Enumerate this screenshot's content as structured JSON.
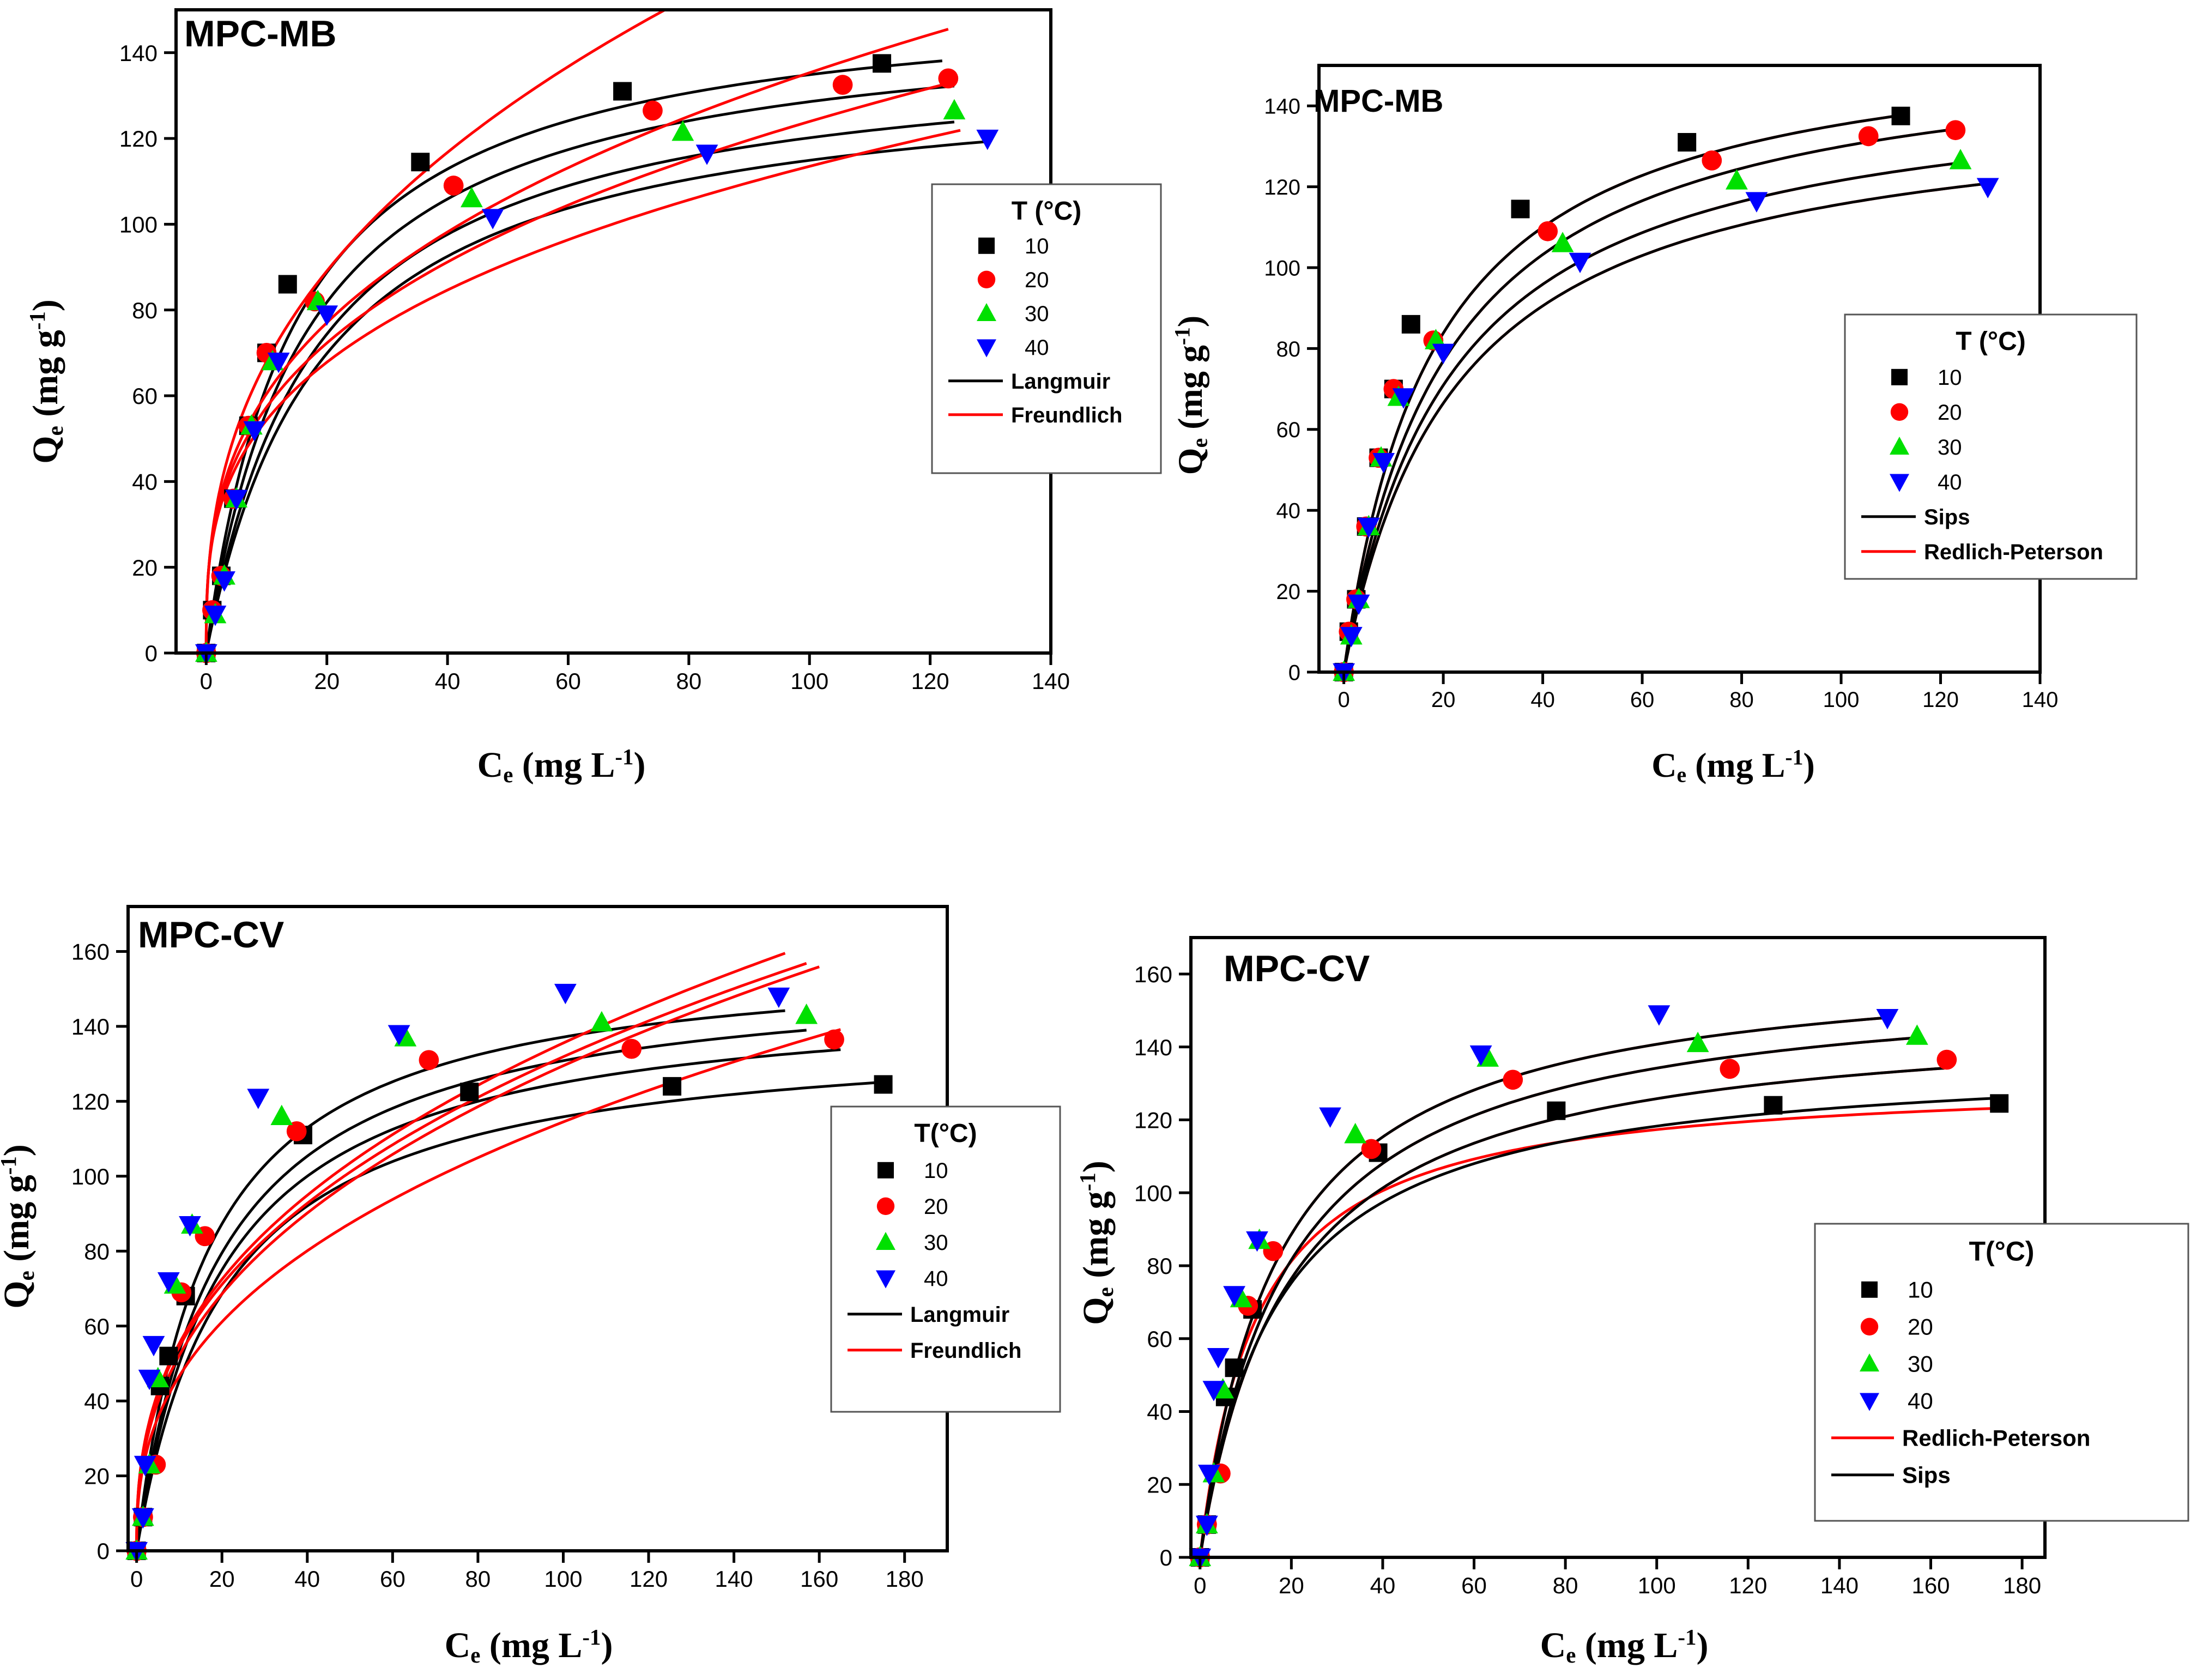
{
  "colors": {
    "t10": "#000000",
    "t20": "#ff0000",
    "t30": "#00e000",
    "t40": "#0000ff",
    "langmuir": "#000000",
    "freundlich": "#ff0000",
    "sips": "#000000",
    "rp": "#ff0000"
  },
  "chart_data": [
    {
      "type": "scatter",
      "title": "MPC-MB",
      "xlabel": "Ce (mg L-1)",
      "ylabel": "Qe (mg g-1)",
      "xlim": [
        -5,
        140
      ],
      "ylim": [
        0,
        150
      ],
      "xticks": [
        0,
        20,
        40,
        60,
        80,
        100,
        120,
        140
      ],
      "yticks": [
        0,
        20,
        40,
        60,
        80,
        100,
        120,
        140
      ],
      "legend": {
        "title": "T (°C)",
        "series": [
          "10",
          "20",
          "30",
          "40"
        ],
        "fits": [
          "Langmuir",
          "Freundlich"
        ],
        "position": "right-middle"
      },
      "series": [
        {
          "name": "10",
          "marker": "square",
          "color": "#000000",
          "x": [
            0,
            1,
            2.5,
            4.5,
            7,
            10,
            13.5,
            35.5,
            69,
            112
          ],
          "y": [
            0,
            10,
            18,
            36,
            53,
            70,
            86,
            114.5,
            131,
            137.5
          ]
        },
        {
          "name": "20",
          "marker": "circle",
          "color": "#ff0000",
          "x": [
            0,
            1,
            2.5,
            4.5,
            7,
            10,
            18,
            41,
            74,
            105.5,
            123
          ],
          "y": [
            0,
            10,
            18,
            36,
            53,
            70,
            82,
            109,
            126.5,
            132.5,
            134
          ]
        },
        {
          "name": "30",
          "marker": "triangle-up",
          "color": "#00e000",
          "x": [
            0,
            1.5,
            3,
            5,
            7.5,
            11,
            18.5,
            44,
            79,
            124
          ],
          "y": [
            0,
            9,
            18,
            36,
            53,
            68,
            82,
            106,
            121.5,
            126.5
          ]
        },
        {
          "name": "40",
          "marker": "triangle-down",
          "color": "#0000ff",
          "x": [
            0,
            1.5,
            3,
            5,
            8,
            12,
            20,
            47.5,
            83,
            129.5
          ],
          "y": [
            0,
            9,
            17,
            36,
            52,
            68,
            79,
            101.5,
            116.5,
            120
          ]
        }
      ],
      "fits": [
        {
          "model": "Langmuir",
          "color": "#000000",
          "qm": 155,
          "K": 0.067,
          "xmax": 122
        },
        {
          "model": "Langmuir",
          "color": "#000000",
          "qm": 150,
          "K": 0.06,
          "xmax": 124
        },
        {
          "model": "Langmuir",
          "color": "#000000",
          "qm": 142,
          "K": 0.055,
          "xmax": 124
        },
        {
          "model": "Langmuir",
          "color": "#000000",
          "qm": 137,
          "K": 0.052,
          "xmax": 130
        },
        {
          "model": "Freundlich",
          "color": "#ff0000",
          "Kf": 27.7,
          "n": 0.39,
          "xmax": 120
        },
        {
          "model": "Freundlich",
          "color": "#ff0000",
          "Kf": 27.0,
          "n": 0.35,
          "xmax": 123
        },
        {
          "model": "Freundlich",
          "color": "#ff0000",
          "Kf": 26.5,
          "n": 0.335,
          "xmax": 123
        },
        {
          "model": "Freundlich",
          "color": "#ff0000",
          "Kf": 26.0,
          "n": 0.32,
          "xmax": 125
        }
      ]
    },
    {
      "type": "scatter",
      "title": "MPC-MB",
      "xlabel": "Ce (mg L-1)",
      "ylabel": "Qe (mg g-1)",
      "xlim": [
        -5,
        140
      ],
      "ylim": [
        0,
        150
      ],
      "xticks": [
        0,
        20,
        40,
        60,
        80,
        100,
        120,
        140
      ],
      "yticks": [
        0,
        20,
        40,
        60,
        80,
        100,
        120,
        140
      ],
      "legend": {
        "title": "T (°C)",
        "series": [
          "10",
          "20",
          "30",
          "40"
        ],
        "fits": [
          "Sips",
          "Redlich-Peterson"
        ],
        "position": "right-middle"
      },
      "series": [
        {
          "name": "10",
          "marker": "square",
          "color": "#000000",
          "x": [
            0,
            1,
            2.5,
            4.5,
            7,
            10,
            13.5,
            35.5,
            69,
            112
          ],
          "y": [
            0,
            10,
            18,
            36,
            53,
            70,
            86,
            114.5,
            131,
            137.5
          ]
        },
        {
          "name": "20",
          "marker": "circle",
          "color": "#ff0000",
          "x": [
            0,
            1,
            2.5,
            4.5,
            7,
            10,
            18,
            41,
            74,
            105.5,
            123
          ],
          "y": [
            0,
            10,
            18,
            36,
            53,
            70,
            82,
            109,
            126.5,
            132.5,
            134
          ]
        },
        {
          "name": "30",
          "marker": "triangle-up",
          "color": "#00e000",
          "x": [
            0,
            1.5,
            3,
            5,
            7.5,
            11,
            18.5,
            44,
            79,
            124
          ],
          "y": [
            0,
            9,
            18,
            36,
            53,
            68,
            82,
            106,
            121.5,
            126.5
          ]
        },
        {
          "name": "40",
          "marker": "triangle-down",
          "color": "#0000ff",
          "x": [
            0,
            1.5,
            3,
            5,
            8,
            12,
            20,
            47.5,
            83,
            129.5
          ],
          "y": [
            0,
            9,
            17,
            36,
            52,
            68,
            79,
            101.5,
            116.5,
            120
          ]
        }
      ],
      "fits": [
        {
          "model": "Redlich-Peterson",
          "color": "#ff0000",
          "qm": 160,
          "K": 0.055,
          "xmax": 113
        },
        {
          "model": "Redlich-Peterson",
          "color": "#ff0000",
          "qm": 157,
          "K": 0.048,
          "xmax": 123
        },
        {
          "model": "Redlich-Peterson",
          "color": "#ff0000",
          "qm": 148,
          "K": 0.046,
          "xmax": 124
        },
        {
          "model": "Redlich-Peterson",
          "color": "#ff0000",
          "qm": 142,
          "K": 0.044,
          "xmax": 130
        },
        {
          "model": "Sips",
          "color": "#000000",
          "qm": 160,
          "K": 0.055,
          "xmax": 113
        },
        {
          "model": "Sips",
          "color": "#000000",
          "qm": 157,
          "K": 0.048,
          "xmax": 123
        },
        {
          "model": "Sips",
          "color": "#000000",
          "qm": 148,
          "K": 0.046,
          "xmax": 124
        },
        {
          "model": "Sips",
          "color": "#000000",
          "qm": 142,
          "K": 0.044,
          "xmax": 130
        }
      ]
    },
    {
      "type": "scatter",
      "title": "MPC-CV",
      "xlabel": "Ce (mg L-1)",
      "ylabel": "Qe (mg g-1)",
      "xlim": [
        -2,
        190
      ],
      "ylim": [
        0,
        172
      ],
      "xticks": [
        0,
        20,
        40,
        60,
        80,
        100,
        120,
        140,
        160,
        180
      ],
      "yticks": [
        0,
        20,
        40,
        60,
        80,
        100,
        120,
        140,
        160
      ],
      "legend": {
        "title": "T(°C)",
        "series": [
          "10",
          "20",
          "30",
          "40"
        ],
        "fits": [
          "Langmuir",
          "Freundlich"
        ],
        "position": "right-middle"
      },
      "series": [
        {
          "name": "10",
          "marker": "square",
          "color": "#000000",
          "x": [
            0,
            1.5,
            5.5,
            7.5,
            11.5,
            39,
            78,
            125.5,
            175
          ],
          "y": [
            0,
            9,
            44,
            52,
            68,
            111,
            122.5,
            124,
            124.5
          ]
        },
        {
          "name": "20",
          "marker": "circle",
          "color": "#ff0000",
          "x": [
            0,
            1.5,
            4.5,
            10.5,
            16,
            37.5,
            68.5,
            116,
            163.5
          ],
          "y": [
            0,
            9,
            23,
            69,
            84,
            112,
            131,
            134,
            136.5
          ]
        },
        {
          "name": "30",
          "marker": "triangle-up",
          "color": "#00e000",
          "x": [
            0,
            1.5,
            3,
            5,
            9,
            13,
            34,
            63,
            109,
            157
          ],
          "y": [
            0,
            9,
            23,
            46,
            71,
            87,
            116,
            137,
            141,
            143
          ]
        },
        {
          "name": "40",
          "marker": "triangle-down",
          "color": "#0000ff",
          "x": [
            0,
            1.5,
            2,
            3,
            4,
            7.5,
            12.5,
            28.5,
            61.5,
            100.5,
            150.5
          ],
          "y": [
            0,
            9,
            23,
            46,
            55,
            72,
            87,
            121,
            138,
            149,
            148
          ]
        }
      ],
      "fits": [
        {
          "model": "Langmuir",
          "color": "#000000",
          "qm": 160,
          "K": 0.06,
          "xmax": 152
        },
        {
          "model": "Langmuir",
          "color": "#000000",
          "qm": 156,
          "K": 0.052,
          "xmax": 157
        },
        {
          "model": "Langmuir",
          "color": "#000000",
          "qm": 150,
          "K": 0.05,
          "xmax": 165
        },
        {
          "model": "Langmuir",
          "color": "#000000",
          "qm": 140,
          "K": 0.048,
          "xmax": 175
        },
        {
          "model": "Freundlich",
          "color": "#ff0000",
          "Kf": 22.6,
          "n": 0.389,
          "xmax": 152
        },
        {
          "model": "Freundlich",
          "color": "#ff0000",
          "Kf": 22.5,
          "n": 0.384,
          "xmax": 157
        },
        {
          "model": "Freundlich",
          "color": "#ff0000",
          "Kf": 21.0,
          "n": 0.395,
          "xmax": 160
        },
        {
          "model": "Freundlich",
          "color": "#ff0000",
          "Kf": 19.0,
          "n": 0.39,
          "xmax": 165
        }
      ]
    },
    {
      "type": "scatter",
      "title": "MPC-CV",
      "xlabel": "Ce (mg L-1)",
      "ylabel": "Qe (mg g-1)",
      "xlim": [
        -2,
        185
      ],
      "ylim": [
        0,
        170
      ],
      "xticks": [
        0,
        20,
        40,
        60,
        80,
        100,
        120,
        140,
        160,
        180
      ],
      "yticks": [
        0,
        20,
        40,
        60,
        80,
        100,
        120,
        140,
        160
      ],
      "legend": {
        "title": "T(°C)",
        "series": [
          "10",
          "20",
          "30",
          "40"
        ],
        "fits": [
          "Redlich-Peterson",
          "Sips"
        ],
        "position": "bottom-right"
      },
      "series": [
        {
          "name": "10",
          "marker": "square",
          "color": "#000000",
          "x": [
            0,
            1.5,
            5.5,
            7.5,
            11.5,
            39,
            78,
            125.5,
            175
          ],
          "y": [
            0,
            9,
            44,
            52,
            68,
            111,
            122.5,
            124,
            124.5
          ]
        },
        {
          "name": "20",
          "marker": "circle",
          "color": "#ff0000",
          "x": [
            0,
            1.5,
            4.5,
            10.5,
            16,
            37.5,
            68.5,
            116,
            163.5
          ],
          "y": [
            0,
            9,
            23,
            69,
            84,
            112,
            131,
            134,
            136.5
          ]
        },
        {
          "name": "30",
          "marker": "triangle-up",
          "color": "#00e000",
          "x": [
            0,
            1.5,
            3,
            5,
            9,
            13,
            34,
            63,
            109,
            157
          ],
          "y": [
            0,
            9,
            23,
            46,
            71,
            87,
            116,
            137,
            141,
            143
          ]
        },
        {
          "name": "40",
          "marker": "triangle-down",
          "color": "#0000ff",
          "x": [
            0,
            1.5,
            2,
            3,
            4,
            7.5,
            12.5,
            28.5,
            61.5,
            100.5,
            150.5
          ],
          "y": [
            0,
            9,
            23,
            46,
            55,
            72,
            87,
            121,
            138,
            149,
            148
          ]
        }
      ],
      "fits": [
        {
          "model": "Redlich-Peterson",
          "color": "#ff0000",
          "qm": 165,
          "K": 0.058,
          "xmax": 150
        },
        {
          "model": "Redlich-Peterson",
          "color": "#ff0000",
          "qm": 160,
          "K": 0.052,
          "xmax": 157
        },
        {
          "model": "Redlich-Peterson",
          "color": "#ff0000",
          "qm": 150,
          "K": 0.052,
          "xmax": 163
        },
        {
          "model": "Redlich-Peterson",
          "color": "#ff0000",
          "qm": 132,
          "K": 0.08,
          "xmax": 175
        },
        {
          "model": "Sips",
          "color": "#000000",
          "qm": 165,
          "K": 0.058,
          "xmax": 150
        },
        {
          "model": "Sips",
          "color": "#000000",
          "qm": 160,
          "K": 0.052,
          "xmax": 157
        },
        {
          "model": "Sips",
          "color": "#000000",
          "qm": 150,
          "K": 0.052,
          "xmax": 163
        },
        {
          "model": "Sips",
          "color": "#000000",
          "qm": 138,
          "K": 0.06,
          "xmax": 175
        }
      ]
    }
  ]
}
